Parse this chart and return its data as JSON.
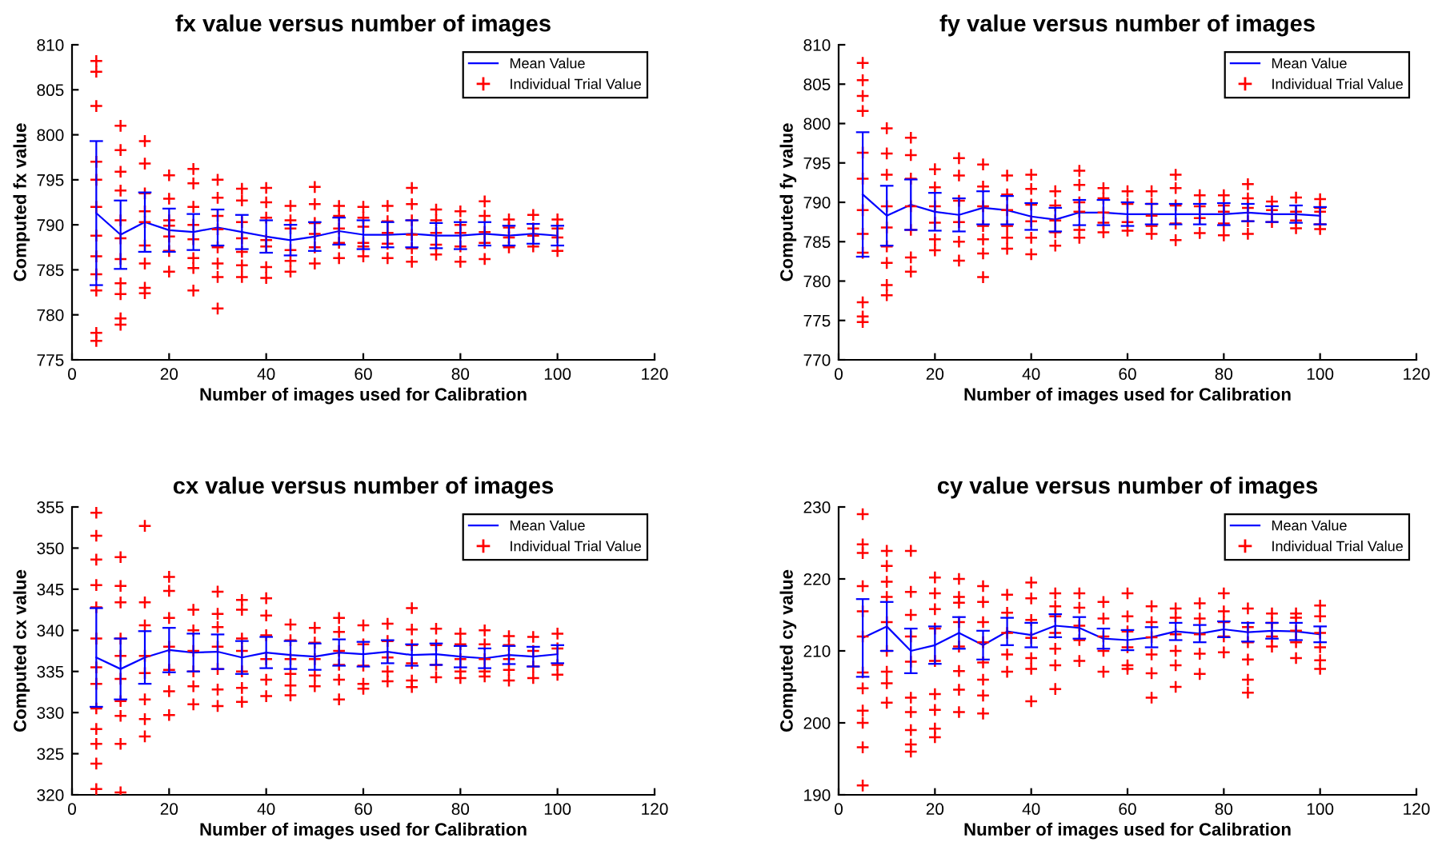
{
  "chart_data": [
    {
      "type": "line",
      "title": "fx value versus number of images",
      "xlabel": "Number of images used for Calibration",
      "ylabel": "Computed fx value",
      "xlim": [
        0,
        120
      ],
      "xticks": [
        0,
        20,
        40,
        60,
        80,
        100,
        120
      ],
      "ylim": [
        775,
        810
      ],
      "yticks": [
        775,
        780,
        785,
        790,
        795,
        800,
        805,
        810
      ],
      "legend": "top right",
      "grid": false,
      "series": [
        {
          "name": "Mean Value",
          "color": "#0000ff",
          "marker": "none",
          "line_style": "solid",
          "x": [
            5,
            10,
            15,
            20,
            25,
            30,
            35,
            40,
            45,
            50,
            55,
            60,
            65,
            70,
            75,
            80,
            85,
            90,
            95,
            100
          ],
          "values": [
            791.3,
            788.9,
            790.3,
            789.4,
            789.2,
            789.7,
            789.2,
            788.7,
            788.3,
            788.7,
            789.3,
            788.9,
            788.9,
            789.0,
            788.8,
            788.8,
            789.0,
            788.8,
            789.0,
            788.8
          ],
          "errors": [
            8.0,
            3.8,
            3.3,
            2.4,
            2.0,
            2.0,
            1.9,
            1.8,
            1.7,
            1.6,
            1.5,
            1.6,
            1.4,
            1.5,
            1.4,
            1.5,
            1.3,
            1.1,
            1.1,
            1.1
          ]
        },
        {
          "name": "Individual Trial Value",
          "type": "scatter",
          "color": "#ff0000",
          "marker": "cross",
          "x": [
            5,
            5,
            5,
            5,
            5,
            5,
            5,
            5,
            5,
            5,
            5,
            5,
            10,
            10,
            10,
            10,
            10,
            10,
            10,
            10,
            10,
            10,
            10,
            15,
            15,
            15,
            15,
            15,
            15,
            15,
            15,
            15,
            20,
            20,
            20,
            20,
            20,
            20,
            20,
            25,
            25,
            25,
            25,
            25,
            25,
            25,
            25,
            30,
            30,
            30,
            30,
            30,
            30,
            30,
            30,
            35,
            35,
            35,
            35,
            35,
            35,
            35,
            40,
            40,
            40,
            40,
            40,
            40,
            40,
            45,
            45,
            45,
            45,
            45,
            45,
            50,
            50,
            50,
            50,
            50,
            50,
            55,
            55,
            55,
            55,
            55,
            60,
            60,
            60,
            60,
            60,
            60,
            65,
            65,
            65,
            65,
            65,
            70,
            70,
            70,
            70,
            70,
            70,
            75,
            75,
            75,
            75,
            75,
            80,
            80,
            80,
            80,
            80,
            85,
            85,
            85,
            85,
            85,
            90,
            90,
            90,
            90,
            95,
            95,
            95,
            95,
            100,
            100,
            100,
            100
          ],
          "values": [
            808.2,
            807,
            803.2,
            797,
            795,
            792,
            788.8,
            786.5,
            784.5,
            782.7,
            778,
            777.1,
            801,
            798.3,
            795.9,
            793.8,
            790.5,
            788.5,
            786.2,
            783.5,
            782.3,
            779.6,
            778.9,
            799.3,
            796.8,
            793.5,
            791.5,
            790.3,
            787.7,
            785.7,
            783,
            782.4,
            795.5,
            792.9,
            790.5,
            789.9,
            788.7,
            787.1,
            784.8,
            796.2,
            794.6,
            792,
            790,
            788.4,
            786.3,
            785.2,
            782.7,
            795,
            793,
            791,
            789.5,
            787.5,
            785.7,
            784.2,
            780.7,
            794,
            792.7,
            790.3,
            788.5,
            787,
            785.5,
            784.2,
            794.1,
            792.5,
            790.8,
            788.3,
            787.6,
            785.3,
            784.1,
            792.1,
            790.5,
            789.6,
            787.2,
            786,
            784.8,
            794.2,
            792.3,
            790.2,
            789,
            787.5,
            785.7,
            792.1,
            791,
            789.6,
            788,
            786.3,
            792,
            790.8,
            789.8,
            788,
            787.6,
            786.5,
            792.1,
            790.4,
            789.1,
            787.9,
            786.3,
            794.1,
            792.3,
            790.5,
            788.9,
            787.4,
            785.9,
            791.7,
            790.5,
            789.1,
            787.8,
            786.7,
            791.5,
            790,
            789.1,
            787.6,
            785.9,
            792.6,
            791,
            789.2,
            788,
            786.2,
            790.6,
            789.7,
            788.6,
            787.5,
            791.1,
            789.6,
            788.8,
            787.6,
            790.6,
            789.6,
            788.6,
            787.1
          ]
        }
      ]
    },
    {
      "type": "line",
      "title": "fy value versus number of images",
      "xlabel": "Number of images used for Calibration",
      "ylabel": "Computed fy value",
      "xlim": [
        0,
        120
      ],
      "xticks": [
        0,
        20,
        40,
        60,
        80,
        100,
        120
      ],
      "ylim": [
        770,
        810
      ],
      "yticks": [
        770,
        775,
        780,
        785,
        790,
        795,
        800,
        805,
        810
      ],
      "legend": "top right",
      "grid": false,
      "series": [
        {
          "name": "Mean Value",
          "color": "#0000ff",
          "marker": "none",
          "line_style": "solid",
          "x": [
            5,
            10,
            15,
            20,
            25,
            30,
            35,
            40,
            45,
            50,
            55,
            60,
            65,
            70,
            75,
            80,
            85,
            90,
            95,
            100
          ],
          "values": [
            791.0,
            788.3,
            789.7,
            788.8,
            788.4,
            789.3,
            789.0,
            788.2,
            787.8,
            788.7,
            788.7,
            788.5,
            788.5,
            788.5,
            788.5,
            788.5,
            788.7,
            788.5,
            788.5,
            788.3
          ],
          "errors": [
            7.9,
            3.8,
            3.2,
            2.4,
            2.1,
            2.1,
            1.8,
            1.7,
            1.5,
            1.6,
            1.6,
            1.5,
            1.3,
            1.3,
            1.3,
            1.4,
            1.1,
            1.0,
            1.1,
            1.1
          ]
        },
        {
          "name": "Individual Trial Value",
          "type": "scatter",
          "color": "#ff0000",
          "marker": "cross",
          "x": [
            5,
            5,
            5,
            5,
            5,
            5,
            5,
            5,
            5,
            5,
            5,
            5,
            10,
            10,
            10,
            10,
            10,
            10,
            10,
            10,
            10,
            15,
            15,
            15,
            15,
            15,
            15,
            15,
            20,
            20,
            20,
            20,
            20,
            20,
            25,
            25,
            25,
            25,
            25,
            25,
            30,
            30,
            30,
            30,
            30,
            30,
            30,
            35,
            35,
            35,
            35,
            35,
            35,
            40,
            40,
            40,
            40,
            40,
            40,
            45,
            45,
            45,
            45,
            45,
            50,
            50,
            50,
            50,
            50,
            50,
            55,
            55,
            55,
            55,
            55,
            60,
            60,
            60,
            60,
            65,
            65,
            65,
            65,
            65,
            70,
            70,
            70,
            70,
            70,
            75,
            75,
            75,
            75,
            80,
            80,
            80,
            80,
            80,
            85,
            85,
            85,
            85,
            85,
            90,
            90,
            90,
            95,
            95,
            95,
            95,
            100,
            100,
            100,
            100,
            100
          ],
          "values": [
            807.7,
            805.5,
            803.5,
            801.6,
            796.3,
            793,
            789,
            786,
            783.6,
            777.3,
            775.5,
            774.8,
            799.4,
            796.2,
            793.5,
            789.5,
            786.8,
            784.4,
            782.3,
            779.5,
            778.2,
            798.2,
            796,
            793,
            789.5,
            786.5,
            783,
            781.2,
            794.2,
            791.9,
            789.5,
            787.4,
            785.3,
            783.9,
            795.6,
            793.4,
            790.2,
            787.5,
            785,
            782.6,
            794.8,
            792,
            789.5,
            787,
            785.3,
            783.5,
            780.5,
            793.4,
            791,
            789,
            787,
            785.5,
            784.1,
            793.5,
            791.7,
            789.7,
            787.6,
            785.5,
            783.4,
            791.4,
            789.6,
            787.7,
            786.2,
            784.5,
            794,
            792.2,
            790,
            788.8,
            786.5,
            785.5,
            791.8,
            790.5,
            788.7,
            787.4,
            786.2,
            791.4,
            789.8,
            787.5,
            786.4,
            791.4,
            789.8,
            788.3,
            787,
            786,
            793.5,
            791.8,
            789.6,
            787.3,
            785.2,
            790.9,
            789.5,
            788,
            786.1,
            790.9,
            789.6,
            788.8,
            787.3,
            785.8,
            792.3,
            790.5,
            789.3,
            787.6,
            786,
            790.1,
            789,
            787.5,
            790.6,
            788.8,
            787.7,
            786.7,
            790.4,
            789.3,
            788.8,
            787.2,
            786.6
          ]
        }
      ]
    },
    {
      "type": "line",
      "title": "cx value versus number of images",
      "xlabel": "Number of images used for Calibration",
      "ylabel": "Computed cx value",
      "xlim": [
        0,
        120
      ],
      "xticks": [
        0,
        20,
        40,
        60,
        80,
        100,
        120
      ],
      "ylim": [
        320,
        355
      ],
      "yticks": [
        320,
        325,
        330,
        335,
        340,
        345,
        350,
        355
      ],
      "legend": "top right",
      "grid": false,
      "series": [
        {
          "name": "Mean Value",
          "color": "#0000ff",
          "marker": "none",
          "line_style": "solid",
          "x": [
            5,
            10,
            15,
            20,
            25,
            30,
            35,
            40,
            45,
            50,
            55,
            60,
            65,
            70,
            75,
            80,
            85,
            90,
            95,
            100
          ],
          "values": [
            336.7,
            335.3,
            336.7,
            337.6,
            337.3,
            337.4,
            336.7,
            337.3,
            337.0,
            336.8,
            337.3,
            337.1,
            337.4,
            337.0,
            337.1,
            336.8,
            336.6,
            337.0,
            336.8,
            337.1
          ],
          "errors": [
            6.0,
            3.7,
            3.2,
            2.7,
            2.3,
            2.1,
            2.0,
            1.9,
            1.7,
            1.6,
            1.6,
            1.5,
            1.4,
            1.3,
            1.3,
            1.3,
            1.2,
            1.1,
            1.2,
            1.1
          ]
        },
        {
          "name": "Individual Trial Value",
          "type": "scatter",
          "color": "#ff0000",
          "marker": "cross",
          "x": [
            5,
            5,
            5,
            5,
            5,
            5,
            5,
            5,
            5,
            5,
            5,
            5,
            5,
            10,
            10,
            10,
            10,
            10,
            10,
            10,
            10,
            10,
            10,
            15,
            15,
            15,
            15,
            15,
            15,
            15,
            15,
            20,
            20,
            20,
            20,
            20,
            20,
            20,
            25,
            25,
            25,
            25,
            25,
            25,
            30,
            30,
            30,
            30,
            30,
            30,
            30,
            35,
            35,
            35,
            35,
            35,
            35,
            35,
            40,
            40,
            40,
            40,
            40,
            40,
            45,
            45,
            45,
            45,
            45,
            45,
            50,
            50,
            50,
            50,
            50,
            55,
            55,
            55,
            55,
            55,
            55,
            60,
            60,
            60,
            60,
            60,
            65,
            65,
            65,
            65,
            65,
            70,
            70,
            70,
            70,
            70,
            70,
            75,
            75,
            75,
            75,
            80,
            80,
            80,
            80,
            80,
            85,
            85,
            85,
            85,
            85,
            90,
            90,
            90,
            90,
            90,
            95,
            95,
            95,
            95,
            100,
            100,
            100,
            100
          ],
          "values": [
            354.3,
            351.5,
            348.6,
            345.5,
            342.8,
            339,
            335.5,
            333.5,
            330.5,
            328,
            326.2,
            323.8,
            320.7,
            348.9,
            345.4,
            343.4,
            339,
            336.9,
            334.1,
            331.4,
            329.6,
            326.2,
            320.3,
            352.7,
            343.4,
            340.6,
            336.9,
            334.8,
            331.6,
            329.2,
            327.1,
            346.5,
            344.8,
            341.5,
            338,
            335.2,
            332.6,
            329.7,
            342.5,
            340,
            337.5,
            335,
            333.2,
            331,
            344.7,
            342,
            340.4,
            338,
            335.3,
            332.8,
            330.8,
            343.7,
            342.5,
            339,
            337.5,
            335,
            333,
            331.3,
            343.9,
            341.8,
            339.4,
            336.5,
            334,
            332,
            340.7,
            338.8,
            336.5,
            334.7,
            333.3,
            332.1,
            340.3,
            338.5,
            336.5,
            334.5,
            333.2,
            341.5,
            339.8,
            337.5,
            335.8,
            334,
            331.6,
            340.6,
            338.3,
            335.7,
            333.5,
            332.9,
            340.8,
            338.7,
            336.7,
            335,
            333.8,
            342.7,
            340.1,
            338.2,
            336,
            333.9,
            333.1,
            340.2,
            338.2,
            335.8,
            334.3,
            339.6,
            338.3,
            336.5,
            335,
            334.2,
            340,
            338.3,
            336.5,
            335,
            334.4,
            339.3,
            338.2,
            336.5,
            335.2,
            333.9,
            339.2,
            337.5,
            335.6,
            334.2,
            339.6,
            337.8,
            335.8,
            334.6
          ]
        }
      ]
    },
    {
      "type": "line",
      "title": "cy value versus number of images",
      "xlabel": "Number of images used for Calibration",
      "ylabel": "Computed cy value",
      "xlim": [
        0,
        120
      ],
      "xticks": [
        0,
        20,
        40,
        60,
        80,
        100,
        120
      ],
      "ylim": [
        190,
        230
      ],
      "yticks": [
        190,
        200,
        210,
        220,
        230
      ],
      "legend": "top right",
      "grid": false,
      "series": [
        {
          "name": "Mean Value",
          "color": "#0000ff",
          "marker": "none",
          "line_style": "solid",
          "x": [
            5,
            10,
            15,
            20,
            25,
            30,
            35,
            40,
            45,
            50,
            55,
            60,
            65,
            70,
            75,
            80,
            85,
            90,
            95,
            100
          ],
          "values": [
            211.8,
            213.4,
            210.0,
            210.8,
            212.5,
            210.8,
            212.7,
            212.2,
            213.5,
            213.2,
            211.7,
            211.5,
            211.9,
            212.7,
            212.4,
            213.0,
            212.6,
            212.8,
            212.7,
            212.3
          ],
          "errors": [
            5.4,
            3.4,
            3.1,
            2.6,
            2.2,
            2.0,
            1.9,
            1.7,
            1.6,
            1.5,
            1.4,
            1.4,
            1.4,
            1.2,
            1.2,
            1.1,
            1.3,
            1.1,
            1.2,
            1.1
          ]
        },
        {
          "name": "Individual Trial Value",
          "type": "scatter",
          "color": "#ff0000",
          "marker": "cross",
          "x": [
            5,
            5,
            5,
            5,
            5,
            5,
            5,
            5,
            5,
            5,
            5,
            5,
            10,
            10,
            10,
            10,
            10,
            10,
            10,
            10,
            10,
            15,
            15,
            15,
            15,
            15,
            15,
            15,
            15,
            15,
            15,
            20,
            20,
            20,
            20,
            20,
            20,
            20,
            20,
            20,
            25,
            25,
            25,
            25,
            25,
            25,
            25,
            25,
            30,
            30,
            30,
            30,
            30,
            30,
            30,
            30,
            35,
            35,
            35,
            35,
            35,
            40,
            40,
            40,
            40,
            40,
            40,
            40,
            45,
            45,
            45,
            45,
            45,
            45,
            45,
            50,
            50,
            50,
            50,
            50,
            55,
            55,
            55,
            55,
            55,
            60,
            60,
            60,
            60,
            60,
            60,
            65,
            65,
            65,
            65,
            65,
            65,
            70,
            70,
            70,
            70,
            70,
            70,
            75,
            75,
            75,
            75,
            75,
            80,
            80,
            80,
            80,
            80,
            85,
            85,
            85,
            85,
            85,
            85,
            90,
            90,
            90,
            90,
            95,
            95,
            95,
            95,
            95,
            100,
            100,
            100,
            100,
            100,
            100
          ],
          "values": [
            229,
            224.8,
            223.6,
            219,
            215.5,
            212,
            207,
            204.8,
            201.7,
            200,
            196.6,
            191.3,
            223.9,
            221.8,
            219.6,
            217.5,
            214,
            210,
            207.1,
            205.5,
            202.8,
            223.9,
            218.2,
            215,
            212,
            208.5,
            203.5,
            201.5,
            199,
            197,
            196,
            220.2,
            218,
            215.8,
            213.1,
            208.6,
            204,
            201.8,
            199.2,
            198,
            220,
            217.5,
            216.7,
            214,
            210.6,
            207.2,
            204.6,
            201.5,
            219,
            216.8,
            214,
            211.2,
            208.4,
            206,
            203.8,
            201.3,
            217.8,
            215.3,
            212.5,
            209.5,
            207.1,
            219.5,
            217.3,
            214.3,
            211.8,
            209,
            207.5,
            203,
            218,
            216.2,
            214.8,
            212.5,
            210.3,
            208,
            204.7,
            218,
            216,
            213.5,
            211.5,
            208.6,
            216.8,
            214.5,
            212,
            210,
            207.1,
            218,
            214.8,
            212.7,
            210.5,
            208,
            207.5,
            216.2,
            214,
            211.9,
            209.5,
            206.9,
            203.5,
            215.9,
            214.6,
            212.3,
            210,
            208,
            205,
            216.6,
            214.5,
            212.3,
            209.6,
            206.8,
            218,
            215.5,
            214,
            212,
            209.8,
            215.9,
            213.3,
            211.2,
            208.8,
            206,
            204.2,
            215.2,
            213.9,
            212,
            210.6,
            215.2,
            214.6,
            212.8,
            211.2,
            209,
            216.3,
            214.8,
            212.5,
            210.5,
            208.7,
            207.5
          ]
        }
      ]
    }
  ]
}
